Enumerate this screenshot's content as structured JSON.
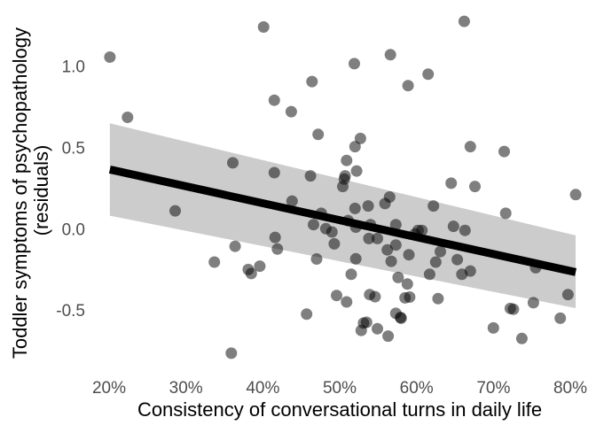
{
  "chart_data": {
    "type": "scatter",
    "title": "",
    "xlabel": "Consistency of conversational turns in daily life",
    "ylabel_lines": [
      "Toddler symptoms of psychopathology",
      "(residuals)"
    ],
    "xlim": [
      0.185,
      0.815
    ],
    "ylim": [
      -0.88,
      1.33
    ],
    "x_ticks": [
      0.2,
      0.3,
      0.4,
      0.5,
      0.6,
      0.7,
      0.8
    ],
    "x_tick_labels": [
      "20%",
      "30%",
      "40%",
      "50%",
      "60%",
      "70%",
      "80%"
    ],
    "y_ticks": [
      1.0,
      0.5,
      0.0,
      -0.5
    ],
    "y_tick_labels": [
      "1.0",
      "0.5",
      "0.0",
      "-0.5"
    ],
    "grid": false,
    "colors": {
      "points": "#000000",
      "point_opacity": 0.5,
      "fit_line": "#000000",
      "ribbon": "#cccccc"
    },
    "fit": {
      "x": [
        0.201,
        0.807
      ],
      "y": [
        0.364,
        -0.267
      ],
      "ci_upper": [
        0.648,
        -0.041
      ],
      "ci_lower": [
        0.08,
        -0.488
      ]
    },
    "series": [
      {
        "points": [
          [
            0.201,
            1.055
          ],
          [
            0.224,
            0.685
          ],
          [
            0.286,
            0.11
          ],
          [
            0.337,
            -0.205
          ],
          [
            0.359,
            -0.765
          ],
          [
            0.361,
            0.405
          ],
          [
            0.364,
            -0.108
          ],
          [
            0.381,
            -0.251
          ],
          [
            0.385,
            -0.275
          ],
          [
            0.396,
            -0.23
          ],
          [
            0.401,
            1.24
          ],
          [
            0.415,
            0.79
          ],
          [
            0.415,
            0.345
          ],
          [
            0.416,
            -0.053
          ],
          [
            0.419,
            -0.125
          ],
          [
            0.437,
            0.72
          ],
          [
            0.438,
            0.17
          ],
          [
            0.457,
            -0.525
          ],
          [
            0.462,
            0.325
          ],
          [
            0.464,
            0.905
          ],
          [
            0.466,
            0.025
          ],
          [
            0.47,
            -0.186
          ],
          [
            0.472,
            0.58
          ],
          [
            0.476,
            0.095
          ],
          [
            0.482,
            0.0
          ],
          [
            0.49,
            -0.02
          ],
          [
            0.493,
            -0.093
          ],
          [
            0.496,
            -0.41
          ],
          [
            0.504,
            0.26
          ],
          [
            0.506,
            0.305
          ],
          [
            0.507,
            0.325
          ],
          [
            0.509,
            0.42
          ],
          [
            0.509,
            -0.45
          ],
          [
            0.511,
            0.05
          ],
          [
            0.515,
            -0.28
          ],
          [
            0.519,
            1.015
          ],
          [
            0.52,
            0.505
          ],
          [
            0.52,
            0.125
          ],
          [
            0.521,
            0.01
          ],
          [
            0.521,
            -0.185
          ],
          [
            0.522,
            0.355
          ],
          [
            0.527,
            0.555
          ],
          [
            0.528,
            -0.625
          ],
          [
            0.531,
            -0.58
          ],
          [
            0.535,
            -0.575
          ],
          [
            0.537,
            0.14
          ],
          [
            0.538,
            -0.06
          ],
          [
            0.539,
            -0.405
          ],
          [
            0.54,
            0.025
          ],
          [
            0.546,
            -0.418
          ],
          [
            0.549,
            -0.06
          ],
          [
            0.549,
            -0.615
          ],
          [
            0.559,
            0.155
          ],
          [
            0.562,
            -0.13
          ],
          [
            0.563,
            -0.66
          ],
          [
            0.565,
            0.195
          ],
          [
            0.566,
            1.07
          ],
          [
            0.567,
            -0.2
          ],
          [
            0.573,
            -0.1
          ],
          [
            0.573,
            0.025
          ],
          [
            0.573,
            -0.52
          ],
          [
            0.576,
            -0.3
          ],
          [
            0.579,
            -0.545
          ],
          [
            0.58,
            -0.55
          ],
          [
            0.585,
            -0.425
          ],
          [
            0.588,
            -0.34
          ],
          [
            0.589,
            0.88
          ],
          [
            0.59,
            -0.16
          ],
          [
            0.591,
            -0.42
          ],
          [
            0.598,
            -0.032
          ],
          [
            0.602,
            -0.01
          ],
          [
            0.607,
            -0.01
          ],
          [
            0.615,
            0.95
          ],
          [
            0.617,
            -0.28
          ],
          [
            0.622,
            0.14
          ],
          [
            0.625,
            -0.205
          ],
          [
            0.628,
            -0.43
          ],
          [
            0.631,
            -0.14
          ],
          [
            0.645,
            0.28
          ],
          [
            0.648,
            0.015
          ],
          [
            0.653,
            -0.19
          ],
          [
            0.659,
            -0.28
          ],
          [
            0.662,
            1.275
          ],
          [
            0.663,
            -0.01
          ],
          [
            0.67,
            0.505
          ],
          [
            0.67,
            -0.26
          ],
          [
            0.676,
            0.26
          ],
          [
            0.7,
            -0.61
          ],
          [
            0.714,
            0.475
          ],
          [
            0.716,
            0.095
          ],
          [
            0.722,
            -0.49
          ],
          [
            0.726,
            -0.495
          ],
          [
            0.737,
            -0.675
          ],
          [
            0.752,
            -0.455
          ],
          [
            0.755,
            -0.24
          ],
          [
            0.787,
            -0.55
          ],
          [
            0.797,
            -0.405
          ],
          [
            0.807,
            0.21
          ]
        ]
      }
    ]
  }
}
